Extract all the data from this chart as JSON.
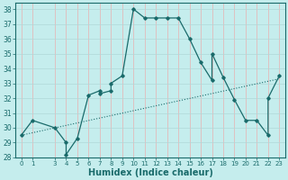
{
  "xlabel": "Humidex (Indice chaleur)",
  "bg_color": "#c5eded",
  "grid_color_v": "#d4a0a0",
  "grid_color_h": "#b8d8d8",
  "line_color": "#1a6b6b",
  "xlim": [
    -0.5,
    23.5
  ],
  "ylim": [
    28,
    38.4
  ],
  "xticks": [
    0,
    1,
    3,
    4,
    5,
    6,
    7,
    8,
    9,
    10,
    11,
    12,
    13,
    14,
    15,
    16,
    17,
    18,
    19,
    20,
    21,
    22,
    23
  ],
  "yticks": [
    28,
    29,
    30,
    31,
    32,
    33,
    34,
    35,
    36,
    37,
    38
  ],
  "main_x": [
    0,
    1,
    3,
    4,
    4,
    5,
    6,
    7,
    7,
    8,
    8,
    9,
    10,
    11,
    12,
    13,
    14,
    15,
    16,
    17,
    17,
    18,
    19,
    20,
    21,
    22,
    22,
    23
  ],
  "main_y": [
    29.5,
    30.5,
    30.0,
    29.0,
    28.2,
    29.3,
    32.2,
    32.5,
    32.3,
    32.5,
    33.0,
    33.5,
    38.0,
    37.4,
    37.4,
    37.4,
    37.4,
    36.0,
    34.4,
    33.2,
    35.0,
    33.4,
    31.9,
    30.5,
    30.5,
    29.5,
    32.0,
    33.5
  ],
  "trend_x": [
    0,
    23
  ],
  "trend_y": [
    29.5,
    33.3
  ]
}
